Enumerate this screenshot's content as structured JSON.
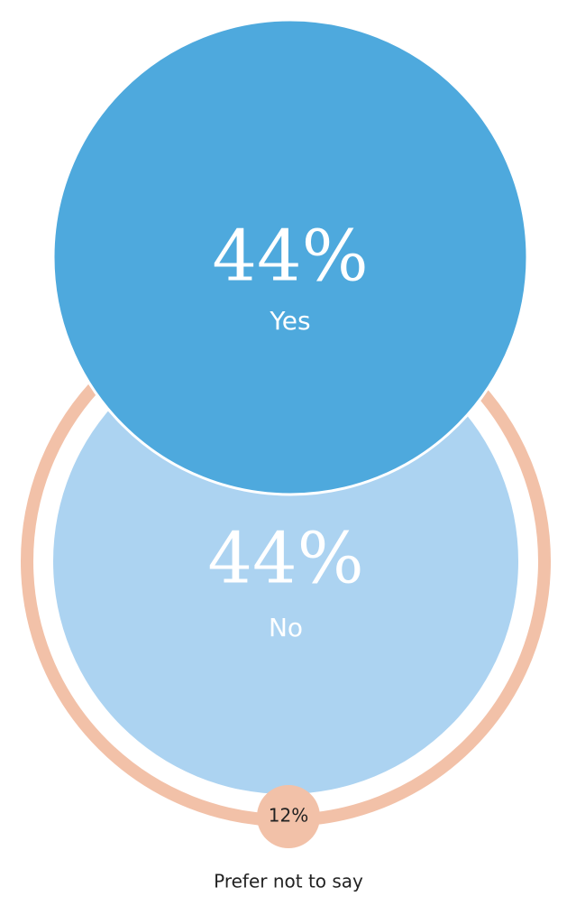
{
  "chart_data": {
    "type": "bubble",
    "categories": [
      "Yes",
      "No",
      "Prefer not to say"
    ],
    "values": [
      44,
      44,
      12
    ],
    "value_labels": [
      "44%",
      "44%",
      "12%"
    ],
    "colors": [
      "#4ea9dd",
      "#acd3f1",
      "#f2c1a8"
    ]
  }
}
